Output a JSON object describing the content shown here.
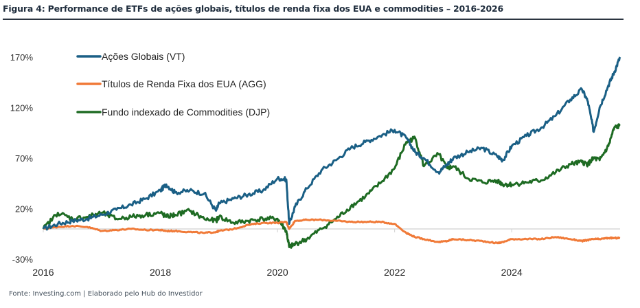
{
  "chart_data": {
    "type": "line",
    "title": "Figura 4: Performance de ETFs de ações globais, títulos de renda fixa dos EUA e commodities – 2016-2026",
    "source": "Fonte: Investing.com | Elaborado pelo Hub do Investidor",
    "xlabel": "",
    "ylabel": "",
    "xlim": [
      2016.0,
      2025.85
    ],
    "ylim": [
      -30,
      190
    ],
    "y_ticks": [
      -30,
      20,
      70,
      120,
      170
    ],
    "y_tick_labels": [
      "-30%",
      "20%",
      "70%",
      "120%",
      "170%"
    ],
    "x_ticks": [
      2016,
      2018,
      2020,
      2022,
      2024
    ],
    "x_tick_labels": [
      "2016",
      "2018",
      "2020",
      "2022",
      "2024"
    ],
    "grid": false,
    "zero_line": true,
    "legend": "top-left",
    "x": [
      2016.0,
      2016.25,
      2016.5,
      2016.75,
      2017.0,
      2017.25,
      2017.5,
      2017.75,
      2018.0,
      2018.1,
      2018.25,
      2018.5,
      2018.75,
      2018.95,
      2019.0,
      2019.25,
      2019.5,
      2019.75,
      2020.0,
      2020.15,
      2020.2,
      2020.3,
      2020.5,
      2020.75,
      2021.0,
      2021.25,
      2021.5,
      2021.75,
      2022.0,
      2022.2,
      2022.35,
      2022.5,
      2022.75,
      2022.9,
      2023.0,
      2023.25,
      2023.5,
      2023.75,
      2023.85,
      2024.0,
      2024.25,
      2024.5,
      2024.75,
      2025.0,
      2025.2,
      2025.3,
      2025.4,
      2025.5,
      2025.65,
      2025.75,
      2025.85
    ],
    "series": [
      {
        "name": "Ações Globais (VT)",
        "color": "#1a5f85",
        "values": [
          0,
          5,
          8,
          10,
          14,
          19,
          24,
          30,
          38,
          44,
          36,
          38,
          35,
          18,
          25,
          30,
          34,
          38,
          50,
          49,
          5,
          22,
          40,
          58,
          68,
          80,
          86,
          92,
          98,
          90,
          76,
          70,
          56,
          64,
          70,
          76,
          80,
          72,
          68,
          82,
          92,
          100,
          112,
          128,
          138,
          126,
          96,
          120,
          142,
          155,
          170
        ]
      },
      {
        "name": "Títulos de Renda Fixa dos EUA (AGG)",
        "color": "#f07a38",
        "values": [
          0,
          2,
          3,
          2,
          -2,
          -1,
          0,
          -1,
          -1,
          -2,
          -2,
          -3,
          -4,
          -3,
          -2,
          0,
          4,
          6,
          6,
          7,
          0,
          8,
          9,
          9,
          8,
          7,
          7,
          7,
          5,
          -4,
          -8,
          -10,
          -13,
          -12,
          -10,
          -11,
          -12,
          -14,
          -13,
          -10,
          -10,
          -10,
          -8,
          -10,
          -12,
          -11,
          -10,
          -10,
          -9,
          -9,
          -9
        ]
      },
      {
        "name": "Fundo indexado de Commodities (DJP)",
        "color": "#1e6b23",
        "values": [
          0,
          16,
          10,
          12,
          16,
          10,
          12,
          14,
          16,
          12,
          14,
          18,
          10,
          8,
          12,
          6,
          8,
          10,
          10,
          -2,
          -18,
          -15,
          -10,
          0,
          10,
          22,
          32,
          45,
          60,
          86,
          90,
          62,
          74,
          60,
          62,
          50,
          46,
          48,
          44,
          44,
          46,
          48,
          56,
          64,
          66,
          64,
          70,
          68,
          82,
          100,
          102
        ]
      }
    ]
  }
}
